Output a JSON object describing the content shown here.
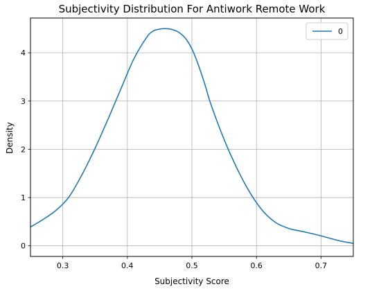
{
  "chart_data": {
    "type": "line",
    "title": "Subjectivity Distribution For Antiwork Remote Work",
    "xlabel": "Subjectivity Score",
    "ylabel": "Density",
    "xlim": [
      0.25,
      0.75
    ],
    "ylim": [
      -0.22,
      4.72
    ],
    "x_ticks": [
      0.3,
      0.4,
      0.5,
      0.6,
      0.7
    ],
    "y_ticks": [
      0,
      1,
      2,
      3,
      4
    ],
    "grid": true,
    "legend_position": "top-right",
    "series": [
      {
        "name": "0",
        "color": "#1f77b4",
        "x": [
          0.25,
          0.27,
          0.29,
          0.31,
          0.33,
          0.35,
          0.37,
          0.39,
          0.41,
          0.43,
          0.44,
          0.45,
          0.46,
          0.47,
          0.48,
          0.49,
          0.5,
          0.51,
          0.52,
          0.53,
          0.55,
          0.57,
          0.59,
          0.61,
          0.63,
          0.65,
          0.67,
          0.69,
          0.71,
          0.73,
          0.75
        ],
        "y": [
          0.39,
          0.55,
          0.74,
          1.02,
          1.48,
          2.02,
          2.62,
          3.25,
          3.87,
          4.32,
          4.45,
          4.49,
          4.5,
          4.48,
          4.42,
          4.3,
          4.08,
          3.75,
          3.35,
          2.91,
          2.2,
          1.6,
          1.1,
          0.72,
          0.48,
          0.36,
          0.3,
          0.24,
          0.17,
          0.1,
          0.05
        ]
      }
    ]
  }
}
